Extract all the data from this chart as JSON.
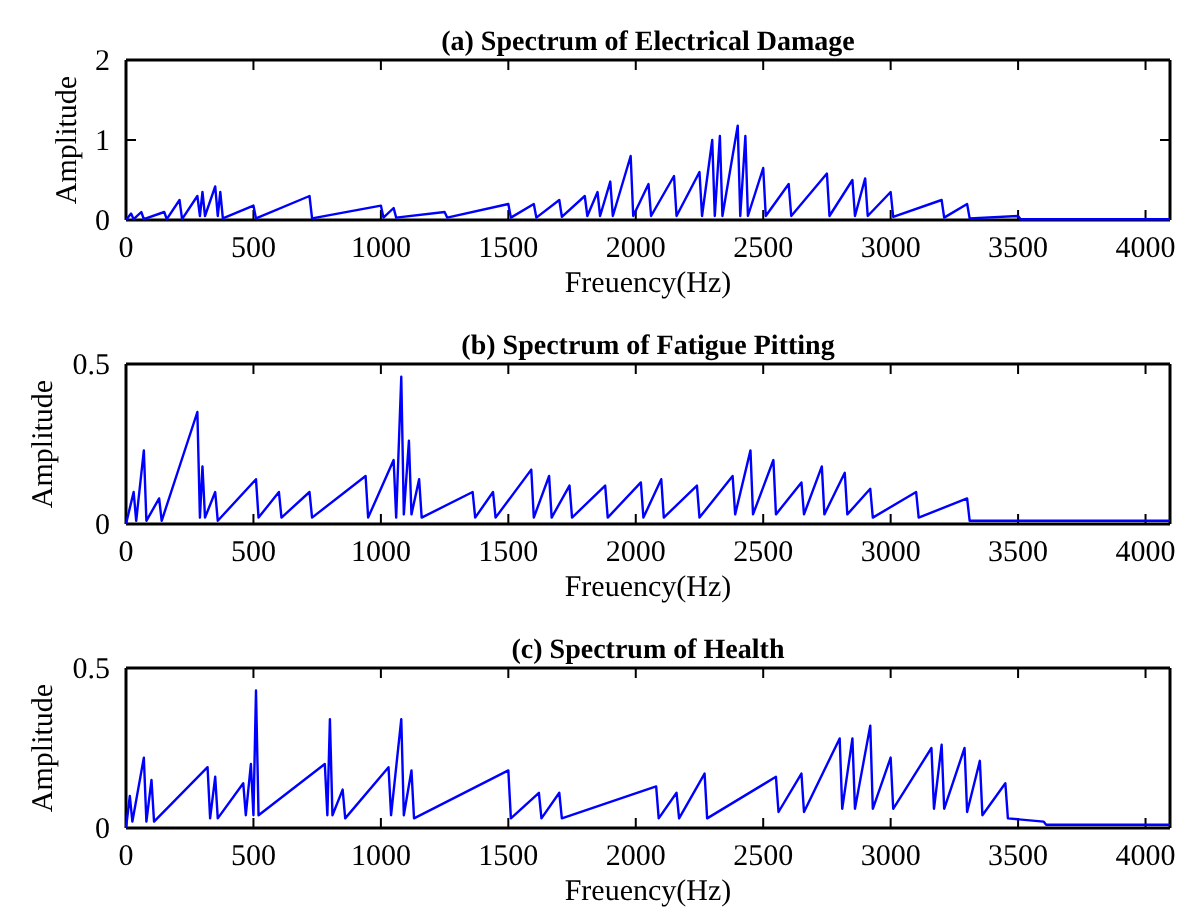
{
  "chart_data": [
    {
      "type": "line",
      "title": "(a) Spectrum of Electrical Damage",
      "xlabel": "Freuency(Hz)",
      "ylabel": "Amplitude",
      "color": "#0000ff",
      "xlim": [
        0,
        4096
      ],
      "ylim": [
        0,
        2
      ],
      "xticks": [
        0,
        500,
        1000,
        1500,
        2000,
        2500,
        3000,
        3500,
        4000
      ],
      "yticks": [
        0,
        1,
        2
      ],
      "x": [
        0,
        20,
        30,
        60,
        70,
        150,
        160,
        210,
        220,
        280,
        290,
        300,
        310,
        350,
        360,
        370,
        380,
        500,
        510,
        720,
        730,
        1000,
        1010,
        1050,
        1060,
        1250,
        1260,
        1500,
        1510,
        1600,
        1610,
        1700,
        1710,
        1800,
        1810,
        1850,
        1860,
        1900,
        1910,
        1980,
        1990,
        2050,
        2060,
        2150,
        2160,
        2250,
        2260,
        2300,
        2310,
        2330,
        2340,
        2400,
        2410,
        2430,
        2440,
        2500,
        2510,
        2600,
        2610,
        2750,
        2760,
        2850,
        2860,
        2900,
        2910,
        3000,
        3010,
        3200,
        3210,
        3300,
        3310,
        3500,
        3510,
        3800,
        4096
      ],
      "values": [
        0,
        0.08,
        0.01,
        0.1,
        0.01,
        0.1,
        0.01,
        0.25,
        0.01,
        0.3,
        0.05,
        0.35,
        0.05,
        0.42,
        0.05,
        0.35,
        0.02,
        0.18,
        0.02,
        0.3,
        0.02,
        0.18,
        0.03,
        0.15,
        0.03,
        0.1,
        0.03,
        0.2,
        0.03,
        0.2,
        0.03,
        0.25,
        0.04,
        0.3,
        0.05,
        0.35,
        0.05,
        0.48,
        0.05,
        0.8,
        0.05,
        0.45,
        0.05,
        0.55,
        0.05,
        0.6,
        0.05,
        1.0,
        0.05,
        1.05,
        0.05,
        1.18,
        0.05,
        1.05,
        0.05,
        0.65,
        0.05,
        0.45,
        0.05,
        0.58,
        0.05,
        0.5,
        0.05,
        0.52,
        0.05,
        0.35,
        0.04,
        0.25,
        0.03,
        0.2,
        0.02,
        0.05,
        0.01,
        0.01,
        0.01
      ]
    },
    {
      "type": "line",
      "title": "(b) Spectrum of Fatigue Pitting",
      "xlabel": "Freuency(Hz)",
      "ylabel": "Amplitude",
      "color": "#0000ff",
      "xlim": [
        0,
        4096
      ],
      "ylim": [
        0,
        0.5
      ],
      "xticks": [
        0,
        500,
        1000,
        1500,
        2000,
        2500,
        3000,
        3500,
        4000
      ],
      "yticks": [
        0,
        0.5
      ],
      "x": [
        0,
        30,
        40,
        70,
        80,
        130,
        140,
        280,
        290,
        300,
        310,
        350,
        360,
        510,
        520,
        600,
        610,
        720,
        730,
        940,
        950,
        1050,
        1060,
        1080,
        1090,
        1110,
        1120,
        1150,
        1160,
        1360,
        1370,
        1440,
        1450,
        1590,
        1600,
        1660,
        1670,
        1740,
        1750,
        1880,
        1890,
        2020,
        2030,
        2100,
        2110,
        2240,
        2250,
        2380,
        2390,
        2450,
        2460,
        2540,
        2550,
        2650,
        2660,
        2730,
        2740,
        2820,
        2830,
        2920,
        2930,
        3100,
        3110,
        3300,
        3310,
        3500,
        3510,
        4096
      ],
      "values": [
        0,
        0.1,
        0.01,
        0.23,
        0.01,
        0.08,
        0.01,
        0.35,
        0.02,
        0.18,
        0.02,
        0.1,
        0.01,
        0.14,
        0.02,
        0.1,
        0.02,
        0.1,
        0.02,
        0.15,
        0.02,
        0.2,
        0.02,
        0.46,
        0.03,
        0.26,
        0.03,
        0.14,
        0.02,
        0.1,
        0.02,
        0.1,
        0.02,
        0.17,
        0.02,
        0.15,
        0.02,
        0.12,
        0.02,
        0.12,
        0.02,
        0.13,
        0.02,
        0.14,
        0.02,
        0.12,
        0.02,
        0.15,
        0.03,
        0.23,
        0.03,
        0.2,
        0.03,
        0.13,
        0.03,
        0.18,
        0.03,
        0.16,
        0.03,
        0.11,
        0.02,
        0.1,
        0.02,
        0.08,
        0.01,
        0.01,
        0.01,
        0.01
      ]
    },
    {
      "type": "line",
      "title": "(c) Spectrum of Health",
      "xlabel": "Freuency(Hz)",
      "ylabel": "Amplitude",
      "color": "#0000ff",
      "xlim": [
        0,
        4096
      ],
      "ylim": [
        0,
        0.5
      ],
      "xticks": [
        0,
        500,
        1000,
        1500,
        2000,
        2500,
        3000,
        3500,
        4000
      ],
      "yticks": [
        0,
        0.5
      ],
      "x": [
        0,
        15,
        25,
        70,
        80,
        100,
        110,
        320,
        330,
        350,
        360,
        460,
        470,
        490,
        500,
        510,
        520,
        780,
        790,
        800,
        810,
        850,
        860,
        1030,
        1040,
        1080,
        1090,
        1120,
        1130,
        1500,
        1510,
        1620,
        1630,
        1700,
        1710,
        2080,
        2090,
        2160,
        2170,
        2270,
        2280,
        2550,
        2560,
        2650,
        2660,
        2800,
        2810,
        2850,
        2860,
        2920,
        2930,
        3000,
        3010,
        3160,
        3170,
        3200,
        3210,
        3290,
        3300,
        3350,
        3360,
        3450,
        3460,
        3600,
        3610,
        4096
      ],
      "values": [
        0,
        0.1,
        0.02,
        0.22,
        0.02,
        0.15,
        0.02,
        0.19,
        0.03,
        0.16,
        0.03,
        0.14,
        0.04,
        0.2,
        0.04,
        0.43,
        0.04,
        0.2,
        0.04,
        0.34,
        0.04,
        0.12,
        0.03,
        0.19,
        0.04,
        0.34,
        0.04,
        0.18,
        0.03,
        0.18,
        0.03,
        0.11,
        0.03,
        0.11,
        0.03,
        0.13,
        0.03,
        0.11,
        0.03,
        0.17,
        0.03,
        0.16,
        0.05,
        0.17,
        0.05,
        0.28,
        0.06,
        0.28,
        0.06,
        0.32,
        0.06,
        0.22,
        0.06,
        0.25,
        0.06,
        0.26,
        0.06,
        0.25,
        0.05,
        0.21,
        0.04,
        0.14,
        0.03,
        0.02,
        0.01,
        0.01
      ]
    }
  ]
}
